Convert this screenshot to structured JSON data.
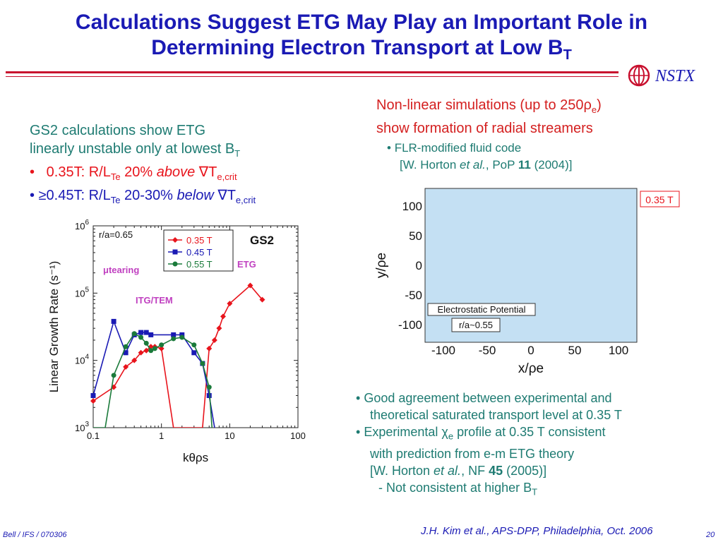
{
  "title": {
    "line1": "Calculations Suggest ETG May Play an Important Role in",
    "line2": "Determining Electron Transport at Low B",
    "line2_sub": "T"
  },
  "logo": {
    "text": "NSTX"
  },
  "left_text": {
    "line1": "GS2 calculations show ETG",
    "line2": "linearly unstable only at lowest B",
    "line2_sub": "T",
    "bullet1": {
      "prefix": "0.35T: R/L",
      "sub1": "Te",
      "mid": " 20% ",
      "emph": "above",
      "grad": " ∇T",
      "sub2": "e,crit"
    },
    "bullet2": {
      "prefix": "≥0.45T: R/L",
      "sub1": "Te",
      "mid": " 20-30% ",
      "emph": "below",
      "grad": " ∇T",
      "sub2": "e,crit"
    }
  },
  "right_text": {
    "line1_a": "Non-linear simulations (up to 250ρ",
    "line1_sub": "e",
    "line1_b": ")",
    "line2": "show formation of radial streamers",
    "sub_bullet1": "FLR-modified fluid code",
    "sub_bullet2_a": "[W. Horton ",
    "sub_bullet2_em": "et al.",
    "sub_bullet2_b": ", PoP ",
    "sub_bullet2_bold": "11",
    "sub_bullet2_c": " (2004)]"
  },
  "contour": {
    "label_field": "0.35 T",
    "label_potential": "Electrostatic Potential",
    "label_ra": "r/a~0.55",
    "ylabel": "y/ρe",
    "xlabel": "x/ρe",
    "yticks": [
      "100",
      "50",
      "0",
      "-50",
      "-100"
    ],
    "xticks": [
      "-100",
      "-50",
      "0",
      "50",
      "100"
    ]
  },
  "bottom_bullets": {
    "b1_l1": "Good agreement between experimental and",
    "b1_l2": "theoretical saturated transport level at 0.35 T",
    "b2_l1_a": "Experimental ",
    "b2_l1_chi": "χ",
    "b2_l1_sub": "e",
    "b2_l1_b": " profile at 0.35 T consistent",
    "b2_l2": "with prediction from e-m ETG theory",
    "b2_l3_a": "[W. Horton ",
    "b2_l3_em": "et al.",
    "b2_l3_b": ", NF ",
    "b2_l3_bold": "45",
    "b2_l3_c": " (2005)]",
    "dash_a": "-  Not consistent at higher B",
    "dash_sub": "T"
  },
  "footer": {
    "left": "Bell / IFS / 070306",
    "center": "J.H. Kim et al., APS-DPP, Philadelphia, Oct. 2006",
    "page": "20"
  },
  "chart_data": {
    "type": "line",
    "title": "GS2",
    "annotation_ra": "r/a=0.65",
    "ylabel": "Linear Growth Rate (s⁻¹)",
    "xlabel": "kθρs",
    "xscale": "log",
    "yscale": "log",
    "xlim": [
      0.1,
      100
    ],
    "ylim": [
      1000,
      1000000
    ],
    "xticks": [
      "0.1",
      "1",
      "10",
      "100"
    ],
    "yticks": [
      {
        "base": "10",
        "exp": "3"
      },
      {
        "base": "10",
        "exp": "4"
      },
      {
        "base": "10",
        "exp": "5"
      },
      {
        "base": "10",
        "exp": "6"
      }
    ],
    "region_labels": [
      {
        "text": "μtearing",
        "color": "#c040c0"
      },
      {
        "text": "ITG/TEM",
        "color": "#c040c0"
      },
      {
        "text": "ETG",
        "color": "#c040c0"
      }
    ],
    "legend_placement": "top-center",
    "series": [
      {
        "name": "0.35 T",
        "color": "#e8141c",
        "marker": "diamond",
        "x": [
          0.1,
          0.2,
          0.3,
          0.4,
          0.5,
          0.6,
          0.7,
          0.8,
          1.0,
          1.5,
          2.0,
          3.0,
          4.0,
          5.0,
          6.0,
          7.0,
          8.0,
          10.0,
          20.0,
          30.0
        ],
        "y": [
          2500,
          4000,
          8000,
          10000,
          13000,
          14000,
          16000,
          16000,
          15000,
          1000,
          1000,
          1000,
          1000,
          15000,
          20000,
          30000,
          45000,
          70000,
          130000,
          80000
        ]
      },
      {
        "name": "0.45 T",
        "color": "#1a1ab4",
        "marker": "square",
        "x": [
          0.1,
          0.2,
          0.3,
          0.4,
          0.5,
          0.6,
          0.7,
          1.5,
          2.0,
          3.0,
          4.0,
          5.0,
          6.0
        ],
        "y": [
          3000,
          38000,
          13000,
          24000,
          26000,
          26000,
          24000,
          24000,
          24000,
          13000,
          9000,
          3000,
          1000
        ]
      },
      {
        "name": "0.55 T",
        "color": "#1a7a3a",
        "marker": "circle",
        "x": [
          0.1,
          0.15,
          0.2,
          0.3,
          0.4,
          0.5,
          0.6,
          0.7,
          0.8,
          1.0,
          1.5,
          2.0,
          3.0,
          4.0,
          5.0,
          5.5
        ],
        "y": [
          1000,
          1000,
          6000,
          16000,
          25000,
          22000,
          18000,
          14000,
          15000,
          17000,
          21000,
          22000,
          17000,
          9000,
          4000,
          1000
        ]
      }
    ]
  }
}
